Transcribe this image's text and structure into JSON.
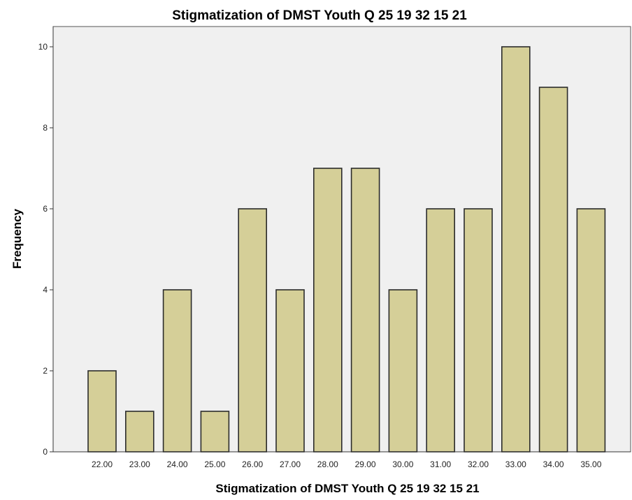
{
  "chart_data": {
    "type": "bar",
    "title": "Stigmatization of DMST Youth Q 25 19 32 15 21",
    "xlabel": "Stigmatization of DMST Youth Q 25 19 32 15 21",
    "ylabel": "Frequency",
    "categories": [
      "22.00",
      "23.00",
      "24.00",
      "25.00",
      "26.00",
      "27.00",
      "28.00",
      "29.00",
      "30.00",
      "31.00",
      "32.00",
      "33.00",
      "34.00",
      "35.00"
    ],
    "values": [
      2,
      1,
      4,
      1,
      6,
      4,
      7,
      7,
      4,
      6,
      6,
      10,
      9,
      6
    ],
    "ylim": [
      0,
      10.5
    ],
    "yticks": [
      0,
      2,
      4,
      6,
      8,
      10
    ],
    "grid": false,
    "colors": {
      "bar": "#d5cf98",
      "bar_outline": "#2b2b2b",
      "plot_background": "#f0f0f0"
    }
  }
}
